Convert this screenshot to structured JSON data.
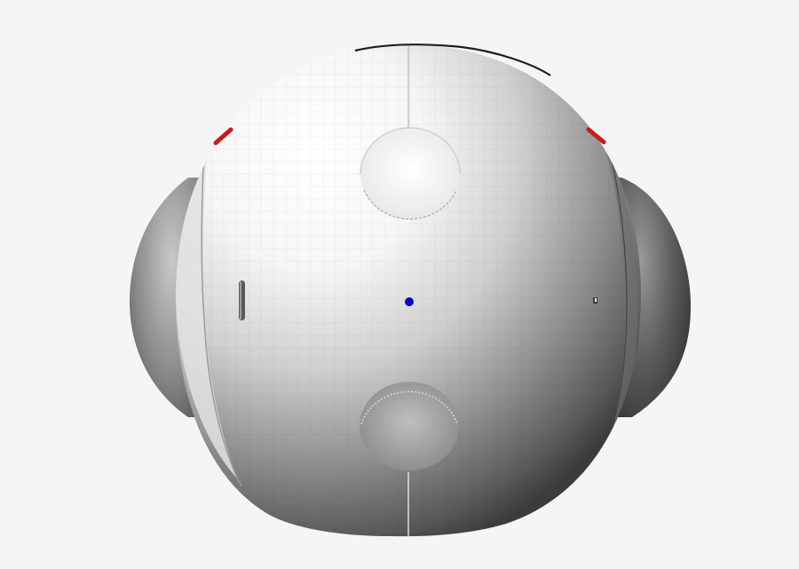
{
  "viewport": {
    "background": "#f5f5f5",
    "model": {
      "name": "sphere-body",
      "shading": "grayscale-faceted",
      "light_color": "#ffffff",
      "dark_color": "#2e2e2e"
    },
    "markers": {
      "center_point_color": "#0000cc",
      "edge_marker_color": "#cc1a1a"
    }
  }
}
